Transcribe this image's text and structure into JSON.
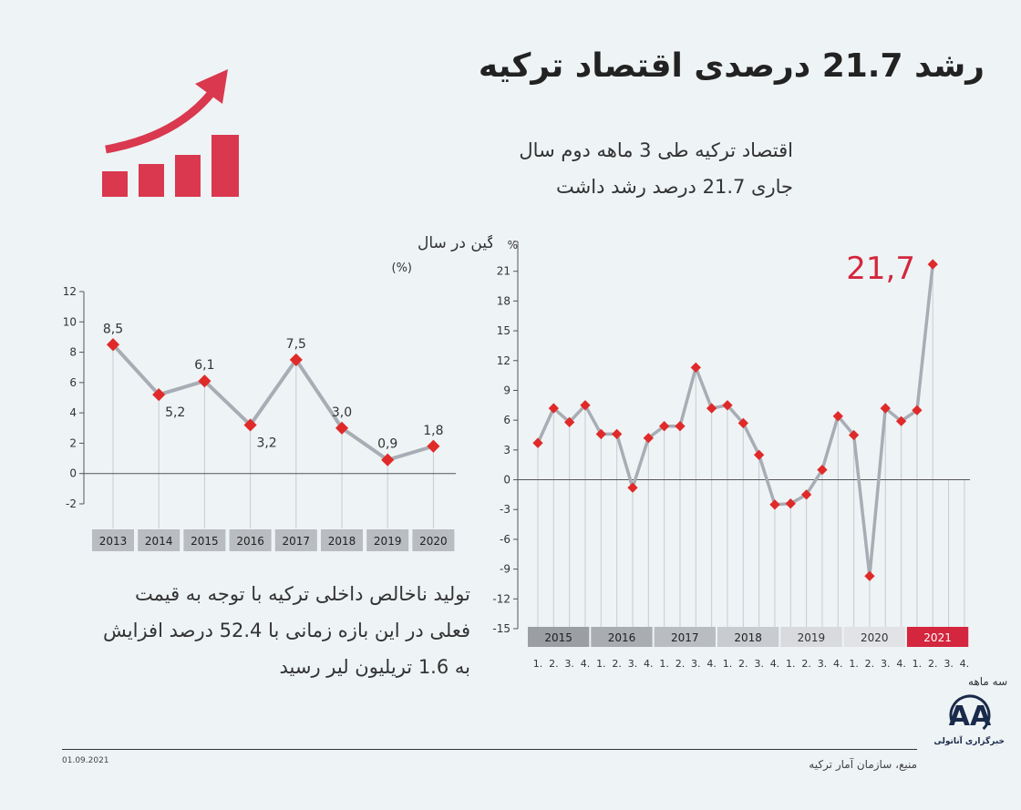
{
  "header": {
    "title": "رشد 21.7 درصدی اقتصاد ترکیه",
    "subtitle_line1": "اقتصاد ترکیه طی 3 ماهه دوم سال",
    "subtitle_line2": "جاری 21.7 درصد رشد داشت"
  },
  "description": {
    "line1": "تولید ناخالص داخلی ترکیه با توجه به قیمت",
    "line2": "فعلی در این بازه زمانی با 52.4 درصد افزایش",
    "line3": "به 1.6 تریلیون لیر رسید"
  },
  "footer": {
    "date": "01.09.2021",
    "source": "منبع، سازمان آمار ترکیه",
    "agency": "خبرگزاری آناتولی",
    "logo_letters": "AA"
  },
  "colors": {
    "marker": "#e02a2a",
    "line": "#a8adb5",
    "highlight": "#d4263e",
    "icon": "#d9384f"
  },
  "icon": "growth-bar-chart-arrow-icon",
  "chart_data": [
    {
      "type": "line",
      "title": "میانگین در سال",
      "ylabel": "(%)",
      "categories": [
        "2013",
        "2014",
        "2015",
        "2016",
        "2017",
        "2018",
        "2019",
        "2020"
      ],
      "values": [
        8.5,
        5.2,
        6.1,
        3.2,
        7.5,
        3.0,
        0.9,
        1.8
      ],
      "value_labels": [
        "8,5",
        "5,2",
        "6,1",
        "3,2",
        "7,5",
        "3,0",
        "0,9",
        "1,8"
      ],
      "ylim": [
        -2,
        12
      ],
      "yticks": [
        12,
        10,
        8,
        6,
        4,
        2,
        0,
        -2
      ],
      "grid": "vertical"
    },
    {
      "type": "line",
      "ylabel": "%",
      "xlabel": "سه ماهه",
      "years": [
        "2015",
        "2016",
        "2017",
        "2018",
        "2019",
        "2020",
        "2021"
      ],
      "quarter_labels": [
        "1.",
        "2.",
        "3.",
        "4."
      ],
      "values": [
        3.7,
        7.2,
        5.8,
        7.5,
        4.6,
        4.6,
        -0.8,
        4.2,
        5.4,
        5.4,
        11.3,
        7.2,
        7.5,
        5.7,
        2.5,
        -2.5,
        -2.4,
        -1.5,
        1.0,
        6.4,
        4.5,
        -9.7,
        7.2,
        5.9,
        7.0,
        21.7
      ],
      "highlight_label": "21,7",
      "ylim": [
        -15,
        24
      ],
      "yticks": [
        24,
        21,
        18,
        15,
        12,
        9,
        6,
        3,
        0,
        -3,
        -6,
        -9,
        -12,
        -15
      ],
      "grid": "vertical"
    }
  ]
}
